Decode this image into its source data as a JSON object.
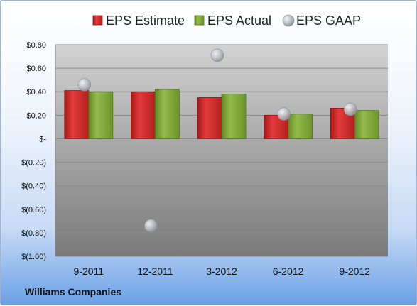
{
  "footer": {
    "company": "Williams Companies"
  },
  "colors": {
    "estimate": "#cc2a2a",
    "actual": "#7fa63a",
    "gaap": "#b9bcc2"
  },
  "chart_data": {
    "type": "bar",
    "title": "",
    "xlabel": "",
    "ylabel": "",
    "categories": [
      "9-2011",
      "12-2011",
      "3-2012",
      "6-2012",
      "9-2012"
    ],
    "series": [
      {
        "name": "EPS Estimate",
        "kind": "bar",
        "values": [
          0.41,
          0.4,
          0.35,
          0.2,
          0.26
        ]
      },
      {
        "name": "EPS Actual",
        "kind": "bar",
        "values": [
          0.4,
          0.42,
          0.38,
          0.21,
          0.24
        ]
      },
      {
        "name": "EPS GAAP",
        "kind": "scatter",
        "values": [
          0.46,
          -0.74,
          0.71,
          0.21,
          0.25
        ]
      }
    ],
    "ylim": [
      -1.0,
      0.8
    ],
    "yticks": [
      0.8,
      0.6,
      0.4,
      0.2,
      0.0,
      -0.2,
      -0.4,
      -0.6,
      -0.8,
      -1.0
    ],
    "ytick_labels": [
      "$0.80",
      "$0.60",
      "$0.40",
      "$0.20",
      "$-",
      "$(0.20)",
      "$(0.40)",
      "$(0.60)",
      "$(0.80)",
      "$(1.00)"
    ],
    "grid": true,
    "legend": "top"
  }
}
